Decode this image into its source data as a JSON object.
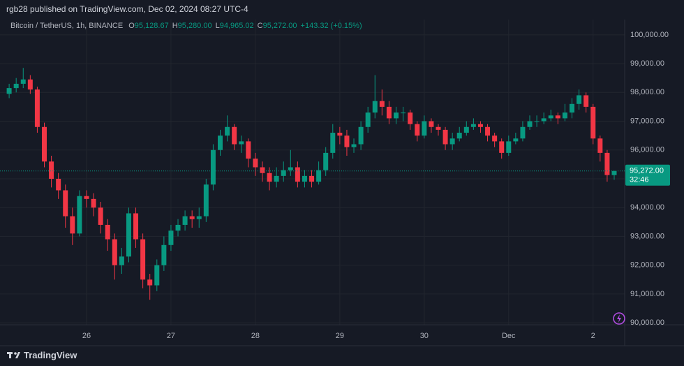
{
  "published": "rgb28 published on TradingView.com, Dec 02, 2024 08:27 UTC-4",
  "brand": "TradingView",
  "chart_data": {
    "type": "candlestick",
    "symbol": "Bitcoin / TetherUS, 1h, BINANCE",
    "ohlc_legend": [
      {
        "label": "O",
        "value": "95,128.67"
      },
      {
        "label": "H",
        "value": "95,280.00"
      },
      {
        "label": "L",
        "value": "94,965.02"
      },
      {
        "label": "C",
        "value": "95,272.00"
      }
    ],
    "change": "+143.32 (+0.15%)",
    "last_price": {
      "value": 95272,
      "label": "95,272.00"
    },
    "countdown": "32:46",
    "up_color": "#089981",
    "down_color": "#f23645",
    "grid": true,
    "ylim": [
      89930,
      100530
    ],
    "yticks": [
      {
        "value": 90000,
        "label": "90,000.00"
      },
      {
        "value": 91000,
        "label": "91,000.00"
      },
      {
        "value": 92000,
        "label": "92,000.00"
      },
      {
        "value": 93000,
        "label": "93,000.00"
      },
      {
        "value": 94000,
        "label": "94,000.00"
      },
      {
        "value": 95000,
        "label": "95,000.00"
      },
      {
        "value": 96000,
        "label": "96,000.00"
      },
      {
        "value": 97000,
        "label": "97,000.00"
      },
      {
        "value": 98000,
        "label": "98,000.00"
      },
      {
        "value": 99000,
        "label": "99,000.00"
      },
      {
        "value": 100000,
        "label": "100,000.00"
      }
    ],
    "categories": [
      null,
      null,
      null,
      null,
      null,
      null,
      null,
      null,
      null,
      null,
      null,
      "26",
      null,
      null,
      null,
      null,
      null,
      null,
      null,
      null,
      null,
      null,
      null,
      "27",
      null,
      null,
      null,
      null,
      null,
      null,
      null,
      null,
      null,
      null,
      null,
      "28",
      null,
      null,
      null,
      null,
      null,
      null,
      null,
      null,
      null,
      null,
      null,
      "29",
      null,
      null,
      null,
      null,
      null,
      null,
      null,
      null,
      null,
      null,
      null,
      "30",
      null,
      null,
      null,
      null,
      null,
      null,
      null,
      null,
      null,
      null,
      null,
      "Dec",
      null,
      null,
      null,
      null,
      null,
      null,
      null,
      null,
      null,
      null,
      null,
      "2",
      null,
      null,
      null
    ],
    "open": [
      97950,
      98150,
      98300,
      98450,
      98100,
      96800,
      95600,
      95000,
      94600,
      93700,
      93100,
      94400,
      94300,
      94000,
      93400,
      92900,
      92000,
      92300,
      93800,
      92900,
      91500,
      91300,
      92000,
      92700,
      93200,
      93400,
      93700,
      93600,
      93700,
      94800,
      96000,
      96500,
      96800,
      96200,
      96300,
      95700,
      95400,
      95200,
      94900,
      95100,
      95300,
      95400,
      94900,
      95100,
      94900,
      95300,
      95900,
      96600,
      96500,
      96100,
      96200,
      96800,
      97300,
      97700,
      97500,
      97100,
      97300,
      97300,
      96900,
      96500,
      97000,
      96800,
      96700,
      96200,
      96400,
      96600,
      96800,
      96900,
      96800,
      96500,
      96300,
      95900,
      96300,
      96400,
      96800,
      97000,
      97000,
      97100,
      97200,
      97100,
      97300,
      97600,
      97900,
      97500,
      96400,
      95900,
      95128.67
    ],
    "high": [
      98300,
      98500,
      98850,
      98600,
      98200,
      96950,
      95800,
      95200,
      94800,
      94000,
      94600,
      94600,
      94500,
      94200,
      93600,
      93100,
      92600,
      94000,
      94000,
      93100,
      91700,
      92200,
      93000,
      93400,
      93600,
      93900,
      93900,
      94000,
      95000,
      96200,
      96700,
      97200,
      96900,
      96500,
      96400,
      95900,
      95600,
      95400,
      95400,
      95600,
      96000,
      95600,
      95300,
      95300,
      95600,
      96100,
      96900,
      96800,
      96700,
      96400,
      97000,
      97500,
      98600,
      98100,
      97700,
      97500,
      97500,
      97400,
      97000,
      97200,
      97100,
      96900,
      96800,
      96600,
      96800,
      97000,
      97100,
      97000,
      96900,
      96600,
      96400,
      96500,
      96600,
      97000,
      97200,
      97200,
      97300,
      97400,
      97300,
      97600,
      97800,
      98100,
      98000,
      97600,
      96500,
      96000,
      95280
    ],
    "low": [
      97800,
      98000,
      98150,
      97950,
      96600,
      95400,
      94700,
      94300,
      93300,
      92700,
      93000,
      94000,
      93700,
      93100,
      92500,
      91500,
      91700,
      92100,
      92600,
      91200,
      90800,
      91100,
      91800,
      92500,
      93000,
      93200,
      93300,
      93300,
      93500,
      94600,
      95800,
      96300,
      96000,
      95900,
      95400,
      95100,
      94900,
      94600,
      94700,
      94900,
      95100,
      94700,
      94700,
      94700,
      94800,
      95100,
      95700,
      96200,
      95800,
      95900,
      96000,
      96600,
      97100,
      97200,
      96900,
      96900,
      97000,
      96700,
      96300,
      96400,
      96600,
      96500,
      96000,
      96000,
      96300,
      96500,
      96700,
      96600,
      96300,
      96100,
      95700,
      95800,
      96200,
      96300,
      96700,
      96800,
      96900,
      97000,
      96900,
      97000,
      97100,
      97400,
      97300,
      96200,
      95600,
      94900,
      94965.02
    ],
    "close": [
      98150,
      98300,
      98450,
      98100,
      96800,
      95600,
      95000,
      94600,
      93700,
      93100,
      94400,
      94300,
      94000,
      93400,
      92900,
      92000,
      92300,
      93800,
      92900,
      91500,
      91300,
      92000,
      92700,
      93200,
      93400,
      93700,
      93600,
      93700,
      94800,
      96000,
      96500,
      96800,
      96200,
      96300,
      95700,
      95400,
      95200,
      94900,
      95100,
      95300,
      95400,
      94900,
      95100,
      94900,
      95300,
      95900,
      96600,
      96500,
      96100,
      96200,
      96800,
      97300,
      97700,
      97500,
      97100,
      97300,
      97300,
      96900,
      96500,
      97000,
      96800,
      96700,
      96200,
      96400,
      96600,
      96800,
      96900,
      96800,
      96500,
      96300,
      95900,
      96300,
      96400,
      96800,
      97000,
      97000,
      97100,
      97200,
      97100,
      97300,
      97600,
      97900,
      97500,
      96400,
      95900,
      95130,
      95272
    ]
  }
}
